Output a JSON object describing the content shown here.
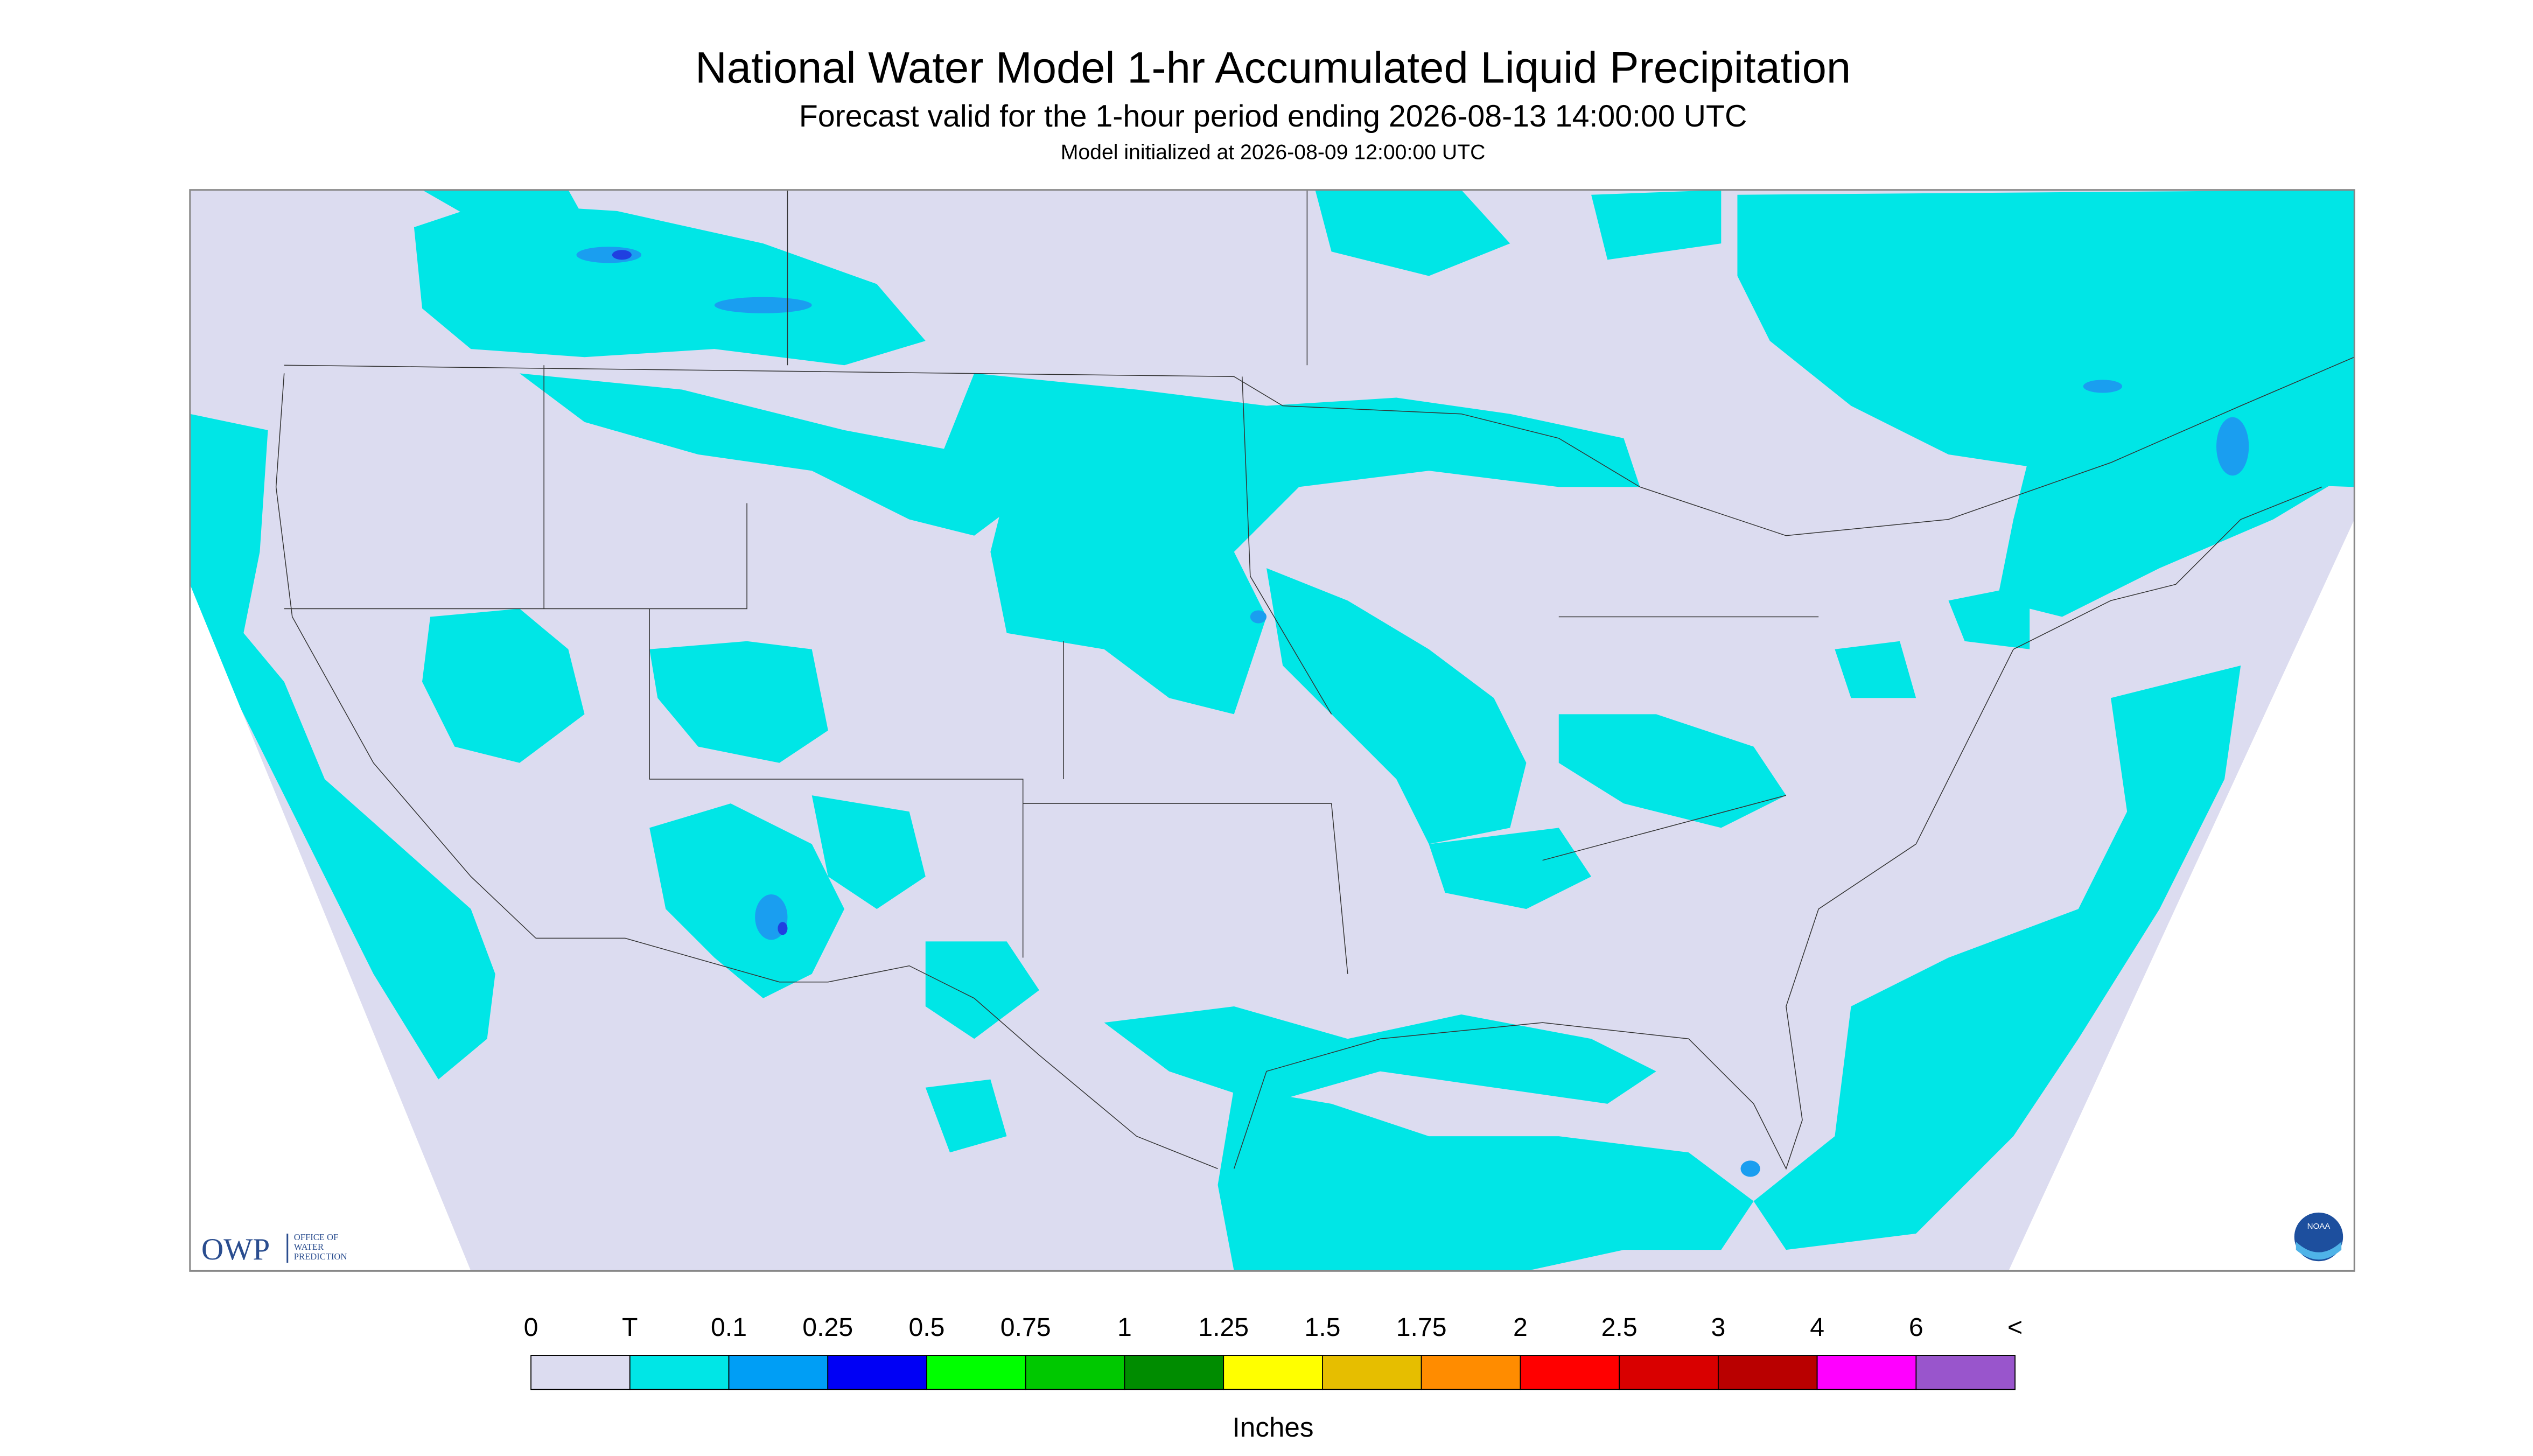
{
  "header": {
    "title": "National Water Model 1-hr Accumulated Liquid Precipitation",
    "subtitle": "Forecast valid for the 1-hour period ending 2026-08-13 14:00:00 UTC",
    "note": "Model initialized at 2026-08-09 12:00:00 UTC"
  },
  "colorbar": {
    "labels": [
      "0",
      "T",
      "0.1",
      "0.25",
      "0.5",
      "0.75",
      "1",
      "1.25",
      "1.5",
      "1.75",
      "2",
      "2.5",
      "3",
      "4",
      "6",
      "<"
    ],
    "colors": [
      "#dcdcf0",
      "#00e6e6",
      "#009ef5",
      "#0000f5",
      "#00ff00",
      "#00c800",
      "#008c00",
      "#ffff00",
      "#e6be00",
      "#ff8c00",
      "#ff0000",
      "#d90000",
      "#b90000",
      "#ff00ff",
      "#9955cc"
    ],
    "unit": "Inches"
  },
  "logos": {
    "owp": "OWP",
    "owp_text": [
      "OFFICE OF",
      "WATER",
      "PREDICTION"
    ],
    "noaa": "NOAA"
  }
}
